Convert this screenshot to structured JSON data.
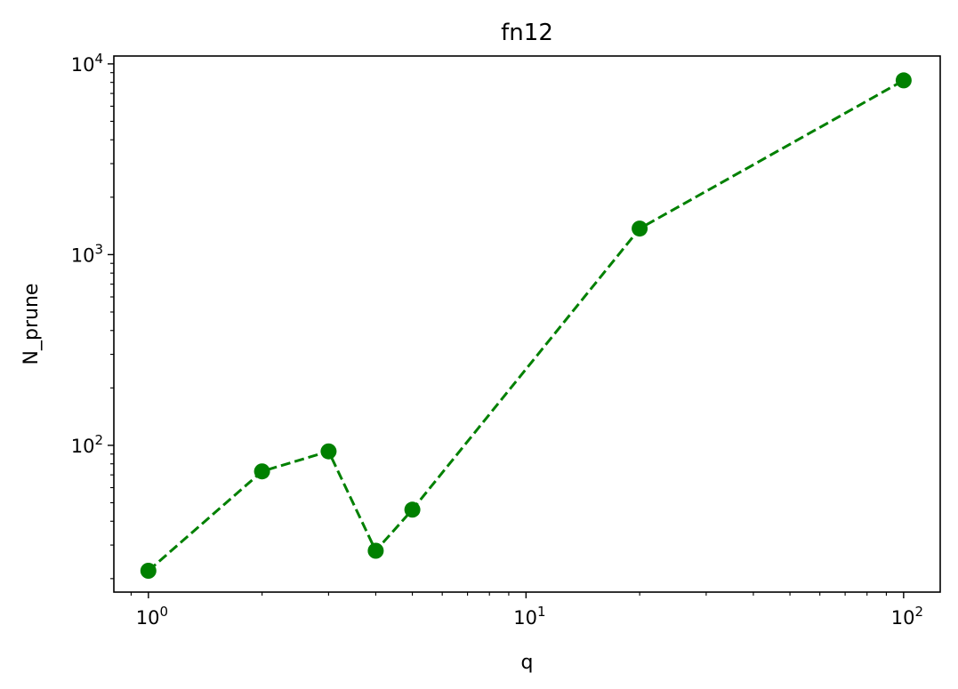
{
  "chart_data": {
    "type": "line",
    "title": "fn12",
    "xlabel": "q",
    "ylabel": "N_prune",
    "xscale": "log",
    "yscale": "log",
    "xlim": [
      0.81,
      125
    ],
    "ylim": [
      17,
      11000
    ],
    "grid": false,
    "x_ticks": [
      {
        "value": 1,
        "base": "10",
        "exp": "0"
      },
      {
        "value": 10,
        "base": "10",
        "exp": "1"
      },
      {
        "value": 100,
        "base": "10",
        "exp": "2"
      }
    ],
    "y_ticks": [
      {
        "value": 100,
        "base": "10",
        "exp": "2"
      },
      {
        "value": 1000,
        "base": "10",
        "exp": "3"
      },
      {
        "value": 10000,
        "base": "10",
        "exp": "4"
      }
    ],
    "series": [
      {
        "x": [
          1,
          2,
          3,
          4,
          5,
          20,
          100
        ],
        "values": [
          22,
          73,
          93,
          28,
          46,
          1370,
          8200
        ],
        "color": "#008000",
        "line_style": "dashed",
        "marker": "circle"
      }
    ]
  }
}
